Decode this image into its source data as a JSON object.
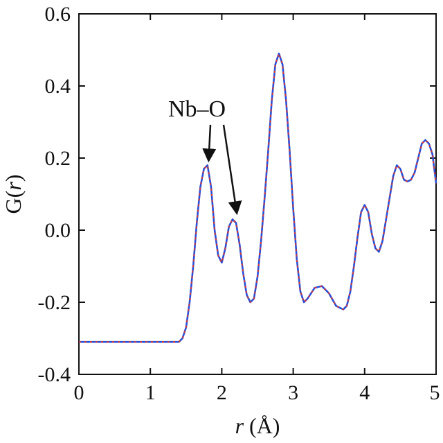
{
  "chart_data": {
    "type": "line",
    "xlabel_italic": "r",
    "xlabel_unit": " (Å)",
    "ylabel_prefix": "G(",
    "ylabel_italic": "r",
    "ylabel_suffix": ")",
    "xlim": [
      0,
      5
    ],
    "ylim": [
      -0.4,
      0.6
    ],
    "x_ticks": [
      0,
      1,
      2,
      3,
      4,
      5
    ],
    "x_tick_labels": [
      "0",
      "1",
      "2",
      "3",
      "4",
      "5"
    ],
    "y_ticks": [
      -0.4,
      -0.2,
      0.0,
      0.2,
      0.4,
      0.6
    ],
    "y_tick_labels": [
      "-0.4",
      "-0.2",
      "0.0",
      "0.2",
      "0.4",
      "0.6"
    ],
    "grid": false,
    "legend": "none",
    "annotation": {
      "text": "Nb–O",
      "points_to": [
        [
          1.8,
          0.18
        ],
        [
          2.2,
          0.03
        ]
      ]
    },
    "series": [
      {
        "color": "#2a4fd6",
        "style": "solid",
        "x": [
          0.0,
          1.4,
          1.45,
          1.5,
          1.55,
          1.6,
          1.65,
          1.7,
          1.75,
          1.8,
          1.85,
          1.9,
          1.95,
          2.0,
          2.05,
          2.1,
          2.15,
          2.2,
          2.25,
          2.3,
          2.35,
          2.4,
          2.45,
          2.5,
          2.55,
          2.6,
          2.65,
          2.7,
          2.75,
          2.8,
          2.85,
          2.9,
          2.95,
          3.0,
          3.05,
          3.1,
          3.15,
          3.2,
          3.3,
          3.4,
          3.5,
          3.6,
          3.7,
          3.75,
          3.8,
          3.85,
          3.9,
          3.95,
          4.0,
          4.05,
          4.1,
          4.15,
          4.2,
          4.25,
          4.3,
          4.35,
          4.4,
          4.45,
          4.5,
          4.55,
          4.6,
          4.65,
          4.7,
          4.75,
          4.8,
          4.85,
          4.9,
          4.95,
          5.0
        ],
        "y": [
          -0.31,
          -0.31,
          -0.3,
          -0.27,
          -0.2,
          -0.1,
          0.02,
          0.12,
          0.17,
          0.18,
          0.12,
          0.0,
          -0.07,
          -0.09,
          -0.05,
          0.01,
          0.03,
          0.02,
          -0.04,
          -0.12,
          -0.18,
          -0.2,
          -0.19,
          -0.13,
          -0.03,
          0.09,
          0.22,
          0.36,
          0.46,
          0.49,
          0.46,
          0.36,
          0.22,
          0.06,
          -0.08,
          -0.17,
          -0.2,
          -0.19,
          -0.16,
          -0.155,
          -0.175,
          -0.21,
          -0.22,
          -0.21,
          -0.17,
          -0.1,
          -0.02,
          0.05,
          0.07,
          0.05,
          -0.01,
          -0.05,
          -0.06,
          -0.03,
          0.03,
          0.09,
          0.15,
          0.18,
          0.17,
          0.14,
          0.135,
          0.14,
          0.16,
          0.2,
          0.24,
          0.25,
          0.24,
          0.21,
          0.13
        ]
      },
      {
        "color": "#e03a2e",
        "style": "dashed",
        "x": [
          0.0,
          1.4,
          1.45,
          1.5,
          1.55,
          1.6,
          1.65,
          1.7,
          1.75,
          1.8,
          1.85,
          1.9,
          1.95,
          2.0,
          2.05,
          2.1,
          2.15,
          2.2,
          2.25,
          2.3,
          2.35,
          2.4,
          2.45,
          2.5,
          2.55,
          2.6,
          2.65,
          2.7,
          2.75,
          2.8,
          2.85,
          2.9,
          2.95,
          3.0,
          3.05,
          3.1,
          3.15,
          3.2,
          3.3,
          3.4,
          3.5,
          3.6,
          3.7,
          3.75,
          3.8,
          3.85,
          3.9,
          3.95,
          4.0,
          4.05,
          4.1,
          4.15,
          4.2,
          4.25,
          4.3,
          4.35,
          4.4,
          4.45,
          4.5,
          4.55,
          4.6,
          4.65,
          4.7,
          4.75,
          4.8,
          4.85,
          4.9,
          4.95,
          5.0
        ],
        "y": [
          -0.31,
          -0.31,
          -0.3,
          -0.27,
          -0.2,
          -0.1,
          0.02,
          0.12,
          0.17,
          0.18,
          0.12,
          0.0,
          -0.07,
          -0.09,
          -0.05,
          0.01,
          0.03,
          0.02,
          -0.04,
          -0.12,
          -0.18,
          -0.2,
          -0.19,
          -0.13,
          -0.03,
          0.09,
          0.22,
          0.36,
          0.46,
          0.49,
          0.46,
          0.36,
          0.22,
          0.06,
          -0.08,
          -0.17,
          -0.2,
          -0.19,
          -0.16,
          -0.155,
          -0.175,
          -0.21,
          -0.22,
          -0.21,
          -0.17,
          -0.1,
          -0.02,
          0.05,
          0.07,
          0.05,
          -0.01,
          -0.05,
          -0.06,
          -0.03,
          0.03,
          0.09,
          0.15,
          0.18,
          0.17,
          0.14,
          0.135,
          0.14,
          0.16,
          0.2,
          0.24,
          0.25,
          0.24,
          0.21,
          0.13
        ]
      }
    ]
  }
}
